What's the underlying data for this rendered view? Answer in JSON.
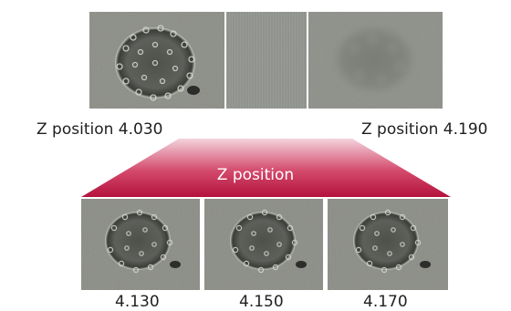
{
  "top_strip": {
    "start_label": "Z position 4.030",
    "end_label": "Z position 4.190"
  },
  "banner": {
    "label": "Z position",
    "color_top": "#f3d3dc",
    "color_bottom": "#b4123c"
  },
  "frames": [
    {
      "label": "4.130"
    },
    {
      "label": "4.150"
    },
    {
      "label": "4.170"
    }
  ]
}
